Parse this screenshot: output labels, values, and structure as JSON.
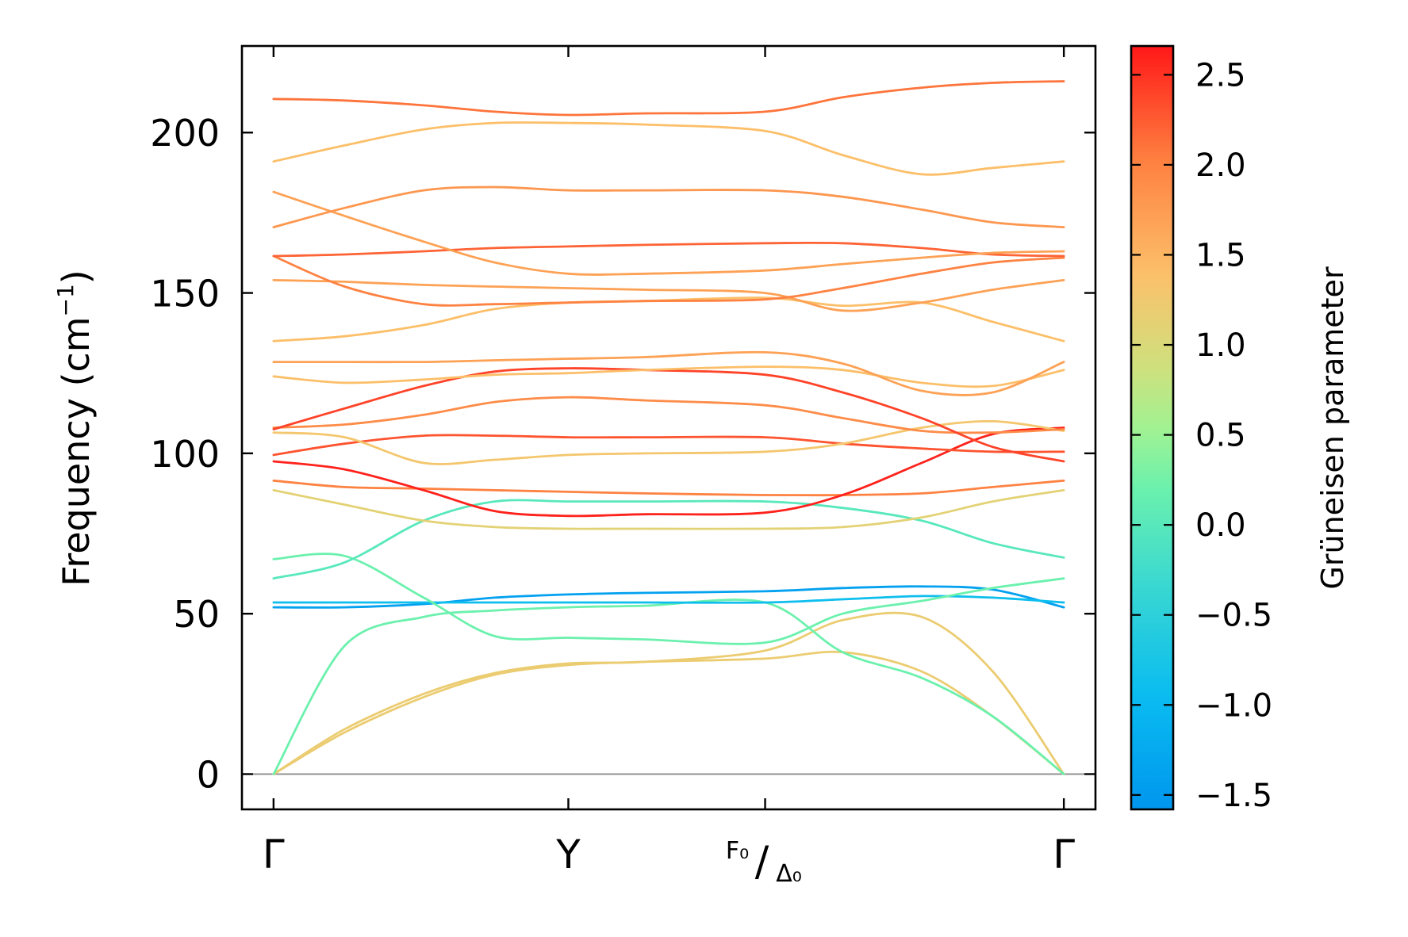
{
  "chart_data": {
    "type": "line",
    "title": "",
    "ylabel": "Frequency (cm⁻¹)",
    "ylabel_main": "Frequency (cm",
    "ylabel_sup": "−1",
    "ylabel_close": ")",
    "ylim": [
      -11,
      227
    ],
    "yticks": [
      0,
      50,
      100,
      150,
      200
    ],
    "ytick_labels": [
      "0",
      "50",
      "100",
      "150",
      "200"
    ],
    "xlim": [
      -0.04,
      1.04
    ],
    "x_high_symmetry": [
      {
        "pos": 0.0,
        "label": "Γ"
      },
      {
        "pos": 0.373,
        "label": "Y"
      },
      {
        "pos": 0.622,
        "label_top": "F₀",
        "label_slash": "/",
        "label_bottom": "Δ₀"
      },
      {
        "pos": 1.0,
        "label": "Γ"
      }
    ],
    "zero_line": 0,
    "colorbar": {
      "label": "Grüneisen parameter",
      "range": [
        -1.58,
        2.66
      ],
      "ticks": [
        2.5,
        2.0,
        1.5,
        1.0,
        0.5,
        0.0,
        -0.5,
        -1.0,
        -1.5
      ],
      "tick_labels": [
        "2.5",
        "2.0",
        "1.5",
        "1.0",
        "0.5",
        "0.0",
        "−0.5",
        "−1.0",
        "−1.5"
      ],
      "colormap": [
        [
          0.0,
          "#0096ee"
        ],
        [
          0.15,
          "#0abcf0"
        ],
        [
          0.3,
          "#3cd9d0"
        ],
        [
          0.42,
          "#6bf1ad"
        ],
        [
          0.5,
          "#a2f292"
        ],
        [
          0.58,
          "#cfe07d"
        ],
        [
          0.7,
          "#fcc06a"
        ],
        [
          0.85,
          "#fe8040"
        ],
        [
          1.0,
          "#ff1818"
        ]
      ]
    },
    "x": [
      0,
      0.09,
      0.19,
      0.28,
      0.373,
      0.47,
      0.622,
      0.72,
      0.82,
      0.91,
      1.0
    ],
    "series": [
      {
        "name": "band-1",
        "g": 1.2,
        "values": [
          0,
          13,
          24,
          31,
          34,
          35,
          36,
          38,
          32,
          18,
          0
        ]
      },
      {
        "name": "band-2",
        "g": 1.2,
        "values": [
          0,
          14,
          25,
          31.5,
          34.5,
          35,
          38.5,
          48,
          49,
          32,
          0
        ]
      },
      {
        "name": "band-3",
        "g": 0.2,
        "values": [
          0,
          40,
          49,
          51,
          52,
          52.5,
          53.5,
          38,
          30,
          18,
          0
        ]
      },
      {
        "name": "band-4",
        "g": -1.4,
        "values": [
          52,
          52,
          53,
          55,
          56,
          56.5,
          57,
          58,
          58.5,
          57.5,
          52
        ]
      },
      {
        "name": "band-5",
        "g": -0.9,
        "values": [
          53.5,
          53.5,
          53.5,
          53.5,
          53.5,
          53.5,
          53.5,
          54.5,
          55.5,
          55,
          53.5
        ]
      },
      {
        "name": "band-6",
        "g": 0.2,
        "values": [
          67,
          68,
          55,
          43,
          42.5,
          42,
          41,
          50,
          54,
          58,
          61
        ]
      },
      {
        "name": "band-7",
        "g": 0.0,
        "values": [
          61,
          66,
          79,
          85,
          85,
          85,
          85,
          83,
          79,
          72,
          67.5
        ]
      },
      {
        "name": "band-8",
        "g": 1.1,
        "values": [
          88.5,
          84,
          79,
          77,
          76.5,
          76.5,
          76.5,
          77,
          80,
          85,
          88.5
        ]
      },
      {
        "name": "band-9",
        "g": 2.0,
        "values": [
          91.5,
          89.5,
          89,
          88.5,
          88,
          87.5,
          87,
          87,
          87.5,
          89.5,
          91.5
        ]
      },
      {
        "name": "band-10",
        "g": 2.6,
        "values": [
          97.5,
          95,
          88.5,
          82,
          80.5,
          81,
          81.5,
          87,
          97,
          106,
          108
        ]
      },
      {
        "name": "band-11",
        "g": 2.3,
        "values": [
          99.5,
          103,
          105.5,
          105.5,
          105,
          105,
          105,
          103,
          101.5,
          100.5,
          100.5
        ]
      },
      {
        "name": "band-12",
        "g": 1.3,
        "values": [
          106.5,
          105,
          97,
          98,
          99.5,
          100,
          100.5,
          103,
          108,
          110,
          107
        ]
      },
      {
        "name": "band-13",
        "g": 1.9,
        "values": [
          108,
          109,
          112,
          116,
          117.5,
          116.5,
          115,
          111,
          107,
          106.5,
          107.5
        ]
      },
      {
        "name": "band-14",
        "g": 2.4,
        "values": [
          107.5,
          114,
          121,
          125.5,
          126.5,
          126,
          124.5,
          119,
          111,
          102,
          97.5
        ]
      },
      {
        "name": "band-15",
        "g": 1.4,
        "values": [
          124,
          122,
          123,
          124.5,
          125,
          126,
          127,
          126,
          122,
          121,
          126
        ]
      },
      {
        "name": "band-16",
        "g": 1.7,
        "values": [
          128.5,
          128.5,
          128.5,
          129,
          129.5,
          130,
          131.5,
          128,
          119.5,
          119,
          128.5
        ]
      },
      {
        "name": "band-17",
        "g": 1.4,
        "values": [
          135,
          136.5,
          140,
          145,
          147,
          147.5,
          148.5,
          146,
          147,
          141,
          135
        ]
      },
      {
        "name": "band-18",
        "g": 1.7,
        "values": [
          154,
          153.5,
          152.5,
          152,
          151.5,
          151,
          150,
          144.5,
          147,
          151,
          154
        ]
      },
      {
        "name": "band-19",
        "g": 2.0,
        "values": [
          161.5,
          152,
          146.5,
          146.5,
          147,
          147.5,
          148,
          151.5,
          156,
          159.5,
          161
        ]
      },
      {
        "name": "band-20",
        "g": 2.2,
        "values": [
          161.5,
          162,
          163,
          164,
          164.5,
          165,
          165.5,
          165.5,
          164,
          162,
          161.5
        ]
      },
      {
        "name": "band-21",
        "g": 1.7,
        "values": [
          181.5,
          174,
          166,
          159.5,
          156,
          156,
          157,
          159,
          161,
          162.5,
          163
        ]
      },
      {
        "name": "band-22",
        "g": 1.8,
        "values": [
          170.5,
          176.5,
          182,
          183,
          182,
          182,
          182,
          180,
          176,
          172,
          170.5
        ]
      },
      {
        "name": "band-23",
        "g": 1.4,
        "values": [
          191,
          196,
          201,
          203,
          203,
          202.5,
          200.5,
          193,
          187,
          189,
          191
        ]
      },
      {
        "name": "band-24",
        "g": 2.1,
        "values": [
          210.5,
          210,
          208.5,
          206.5,
          205.5,
          206,
          206.5,
          211,
          214,
          215.5,
          216
        ]
      }
    ]
  }
}
